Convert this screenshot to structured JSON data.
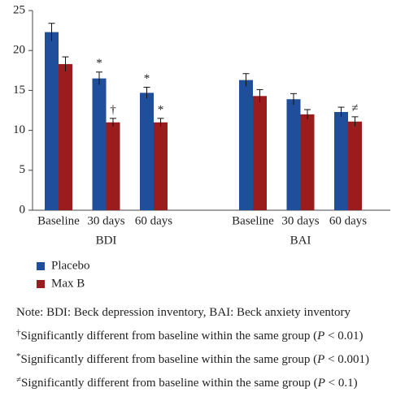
{
  "chart_data": {
    "type": "bar",
    "categories": [
      "Baseline",
      "30 days",
      "60 days",
      "Baseline",
      "30 days",
      "60 days"
    ],
    "group_labels": [
      "BDI",
      "BAI"
    ],
    "series": [
      {
        "name": "Placebo",
        "color": "#1f4e9a",
        "values": [
          22.3,
          16.5,
          14.7,
          16.3,
          13.9,
          12.3
        ],
        "errors": [
          1.1,
          0.8,
          0.7,
          0.8,
          0.7,
          0.6
        ],
        "markers": [
          null,
          "*",
          "*",
          null,
          null,
          null
        ]
      },
      {
        "name": "Max B",
        "color": "#9b1c1c",
        "values": [
          18.3,
          11.0,
          11.0,
          14.3,
          12.0,
          11.1
        ],
        "errors": [
          0.9,
          0.5,
          0.5,
          0.8,
          0.6,
          0.6
        ],
        "markers": [
          null,
          "†",
          "*",
          null,
          null,
          "≠"
        ]
      }
    ],
    "ylim": [
      0,
      25
    ],
    "yticks": [
      0,
      5,
      10,
      15,
      20,
      25
    ],
    "grid": false,
    "notes": [
      {
        "text": "Note: BDI: Beck depression inventory, BAI: Beck anxiety inventory"
      },
      {
        "symbol": "†",
        "text": "Significantly different from baseline within the same group (",
        "p": "P",
        "rest": " < 0.01)"
      },
      {
        "symbol": "*",
        "text": "Significantly different from baseline within the same group (",
        "p": "P",
        "rest": " < 0.001)"
      },
      {
        "symbol": "≠",
        "text": "Significantly different from baseline within the same group (",
        "p": "P",
        "rest": " < 0.1)"
      }
    ]
  }
}
